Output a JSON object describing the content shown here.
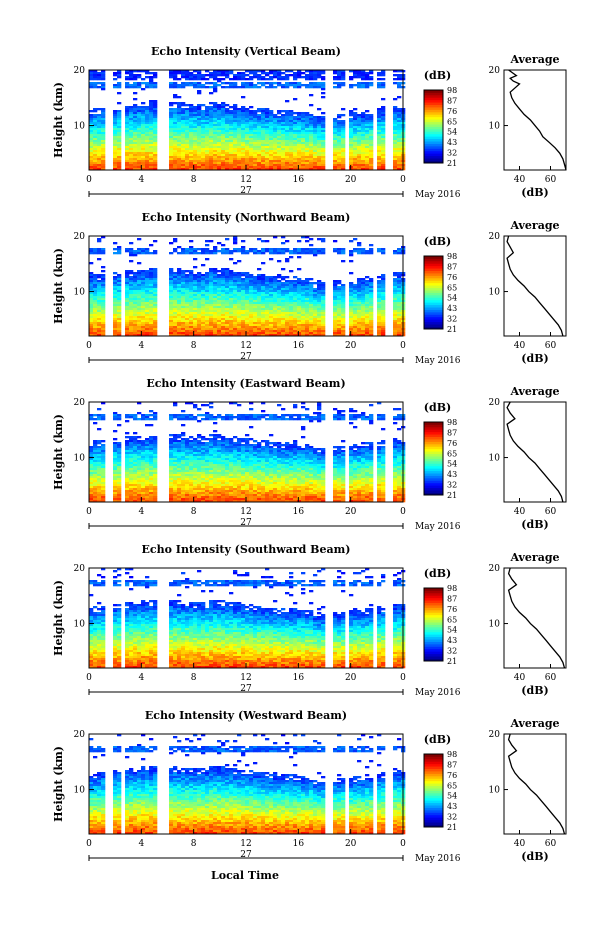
{
  "figure": {
    "date_label": "May 2016",
    "day_label": "27",
    "xlabel": "Local Time",
    "avg_title": "Average",
    "avg_xlabel": "(dB)",
    "colorbar_unit": "(dB)"
  },
  "chart_data": [
    {
      "type": "heatmap",
      "title": "Echo Intensity (Vertical Beam)",
      "ylabel": "Height (km)",
      "xlim": [
        0,
        24
      ],
      "ylim": [
        2,
        20
      ],
      "xticks": [
        "0",
        "4",
        "8",
        "12",
        "16",
        "20",
        "0"
      ],
      "yticks": [
        "10",
        "20"
      ],
      "colorbar": [
        "21",
        "32",
        "43",
        "54",
        "65",
        "76",
        "87",
        "98"
      ],
      "avg": {
        "title": "Average",
        "xlabel": "(dB)",
        "xlim": [
          30,
          70
        ],
        "xticks": [
          "40",
          "60"
        ],
        "yticks": [
          "10",
          "20"
        ],
        "profile": [
          [
            70,
            2
          ],
          [
            69,
            3
          ],
          [
            68,
            4
          ],
          [
            66,
            5
          ],
          [
            63,
            6
          ],
          [
            59,
            7
          ],
          [
            55,
            8
          ],
          [
            53,
            9
          ],
          [
            50,
            10
          ],
          [
            47,
            11
          ],
          [
            43,
            12
          ],
          [
            40,
            13
          ],
          [
            37,
            14
          ],
          [
            35,
            15
          ],
          [
            34,
            16
          ],
          [
            38,
            17
          ],
          [
            40,
            17.5
          ],
          [
            36,
            18
          ],
          [
            34,
            18.5
          ],
          [
            38,
            19
          ],
          [
            33,
            20
          ]
        ]
      }
    },
    {
      "type": "heatmap",
      "title": "Echo Intensity (Northward Beam)",
      "ylabel": "Height (km)",
      "xlim": [
        0,
        24
      ],
      "ylim": [
        2,
        20
      ],
      "xticks": [
        "0",
        "4",
        "8",
        "12",
        "16",
        "20",
        "0"
      ],
      "yticks": [
        "10",
        "20"
      ],
      "colorbar": [
        "21",
        "32",
        "43",
        "54",
        "65",
        "76",
        "87",
        "98"
      ],
      "avg": {
        "title": "Average",
        "xlabel": "(dB)",
        "xlim": [
          30,
          70
        ],
        "xticks": [
          "40",
          "60"
        ],
        "yticks": [
          "10",
          "20"
        ],
        "profile": [
          [
            68,
            2
          ],
          [
            67,
            3
          ],
          [
            65,
            4
          ],
          [
            62,
            5
          ],
          [
            59,
            6
          ],
          [
            56,
            7
          ],
          [
            53,
            8
          ],
          [
            50,
            9
          ],
          [
            46,
            10
          ],
          [
            43,
            11
          ],
          [
            39,
            12
          ],
          [
            36,
            13
          ],
          [
            34,
            14
          ],
          [
            33,
            15
          ],
          [
            32,
            16
          ],
          [
            36,
            17
          ],
          [
            34,
            18
          ],
          [
            32,
            19
          ],
          [
            33,
            20
          ]
        ]
      }
    },
    {
      "type": "heatmap",
      "title": "Echo Intensity (Eastward Beam)",
      "ylabel": "Height (km)",
      "xlim": [
        0,
        24
      ],
      "ylim": [
        2,
        20
      ],
      "xticks": [
        "0",
        "4",
        "8",
        "12",
        "16",
        "20",
        "0"
      ],
      "yticks": [
        "10",
        "20"
      ],
      "colorbar": [
        "21",
        "32",
        "43",
        "54",
        "65",
        "76",
        "87",
        "98"
      ],
      "avg": {
        "title": "Average",
        "xlabel": "(dB)",
        "xlim": [
          30,
          70
        ],
        "xticks": [
          "40",
          "60"
        ],
        "yticks": [
          "10",
          "20"
        ],
        "profile": [
          [
            68,
            2
          ],
          [
            67,
            3
          ],
          [
            65,
            4
          ],
          [
            62,
            5
          ],
          [
            59,
            6
          ],
          [
            56,
            7
          ],
          [
            53,
            8
          ],
          [
            50,
            9
          ],
          [
            46,
            10
          ],
          [
            43,
            11
          ],
          [
            39,
            12
          ],
          [
            36,
            13
          ],
          [
            34,
            14
          ],
          [
            33,
            15
          ],
          [
            32,
            16
          ],
          [
            37,
            17
          ],
          [
            34,
            18
          ],
          [
            32,
            19
          ],
          [
            34,
            20
          ]
        ]
      }
    },
    {
      "type": "heatmap",
      "title": "Echo Intensity (Southward Beam)",
      "ylabel": "Height (km)",
      "xlim": [
        0,
        24
      ],
      "ylim": [
        2,
        20
      ],
      "xticks": [
        "0",
        "4",
        "8",
        "12",
        "16",
        "20",
        "0"
      ],
      "yticks": [
        "10",
        "20"
      ],
      "colorbar": [
        "21",
        "32",
        "43",
        "54",
        "65",
        "76",
        "87",
        "98"
      ],
      "avg": {
        "title": "Average",
        "xlabel": "(dB)",
        "xlim": [
          30,
          70
        ],
        "xticks": [
          "40",
          "60"
        ],
        "yticks": [
          "10",
          "20"
        ],
        "profile": [
          [
            69,
            2
          ],
          [
            68,
            3
          ],
          [
            66,
            4
          ],
          [
            63,
            5
          ],
          [
            60,
            6
          ],
          [
            57,
            7
          ],
          [
            54,
            8
          ],
          [
            51,
            9
          ],
          [
            47,
            10
          ],
          [
            44,
            11
          ],
          [
            40,
            12
          ],
          [
            37,
            13
          ],
          [
            35,
            14
          ],
          [
            34,
            15
          ],
          [
            33,
            16
          ],
          [
            38,
            17
          ],
          [
            35,
            18
          ],
          [
            33,
            19
          ],
          [
            34,
            20
          ]
        ]
      }
    },
    {
      "type": "heatmap",
      "title": "Echo Intensity (Westward Beam)",
      "ylabel": "Height (km)",
      "xlim": [
        0,
        24
      ],
      "ylim": [
        2,
        20
      ],
      "xticks": [
        "0",
        "4",
        "8",
        "12",
        "16",
        "20",
        "0"
      ],
      "yticks": [
        "10",
        "20"
      ],
      "colorbar": [
        "21",
        "32",
        "43",
        "54",
        "65",
        "76",
        "87",
        "98"
      ],
      "avg": {
        "title": "Average",
        "xlabel": "(dB)",
        "xlim": [
          30,
          70
        ],
        "xticks": [
          "40",
          "60"
        ],
        "yticks": [
          "10",
          "20"
        ],
        "profile": [
          [
            69,
            2
          ],
          [
            68,
            3
          ],
          [
            66,
            4
          ],
          [
            63,
            5
          ],
          [
            60,
            6
          ],
          [
            57,
            7
          ],
          [
            54,
            8
          ],
          [
            51,
            9
          ],
          [
            47,
            10
          ],
          [
            44,
            11
          ],
          [
            40,
            12
          ],
          [
            37,
            13
          ],
          [
            35,
            14
          ],
          [
            34,
            15
          ],
          [
            33,
            16
          ],
          [
            38,
            17
          ],
          [
            35,
            18
          ],
          [
            33,
            19
          ],
          [
            34,
            20
          ]
        ]
      }
    }
  ]
}
